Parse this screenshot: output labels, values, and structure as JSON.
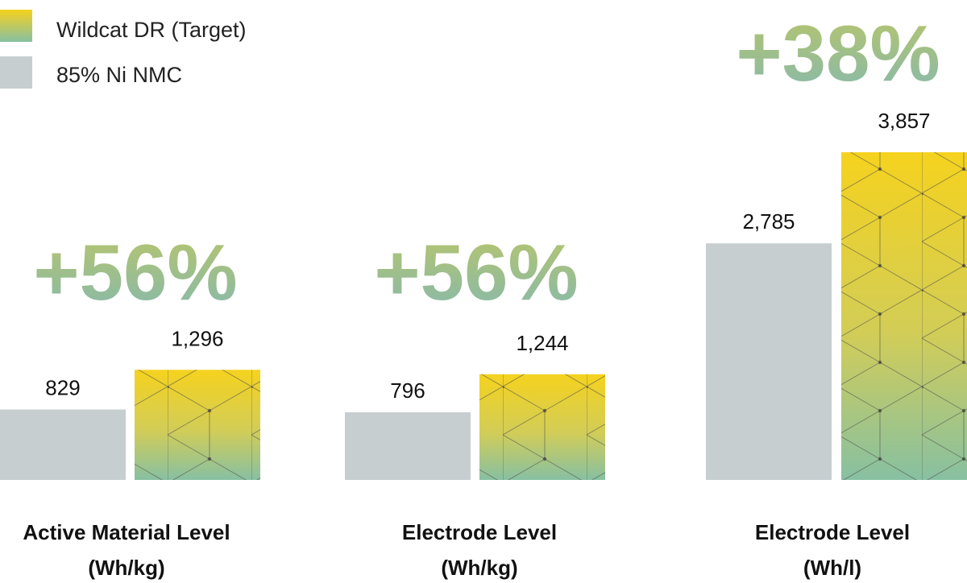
{
  "chart_data": {
    "type": "bar",
    "categories": [
      {
        "line1": "Active Material Level",
        "line2": "(Wh/kg)"
      },
      {
        "line1": "Electrode Level",
        "line2": "(Wh/kg)"
      },
      {
        "line1": "Electrode Level",
        "line2": "(Wh/l)"
      }
    ],
    "series": [
      {
        "name": "85% Ni NMC",
        "values": [
          829,
          796,
          2785
        ],
        "labels": [
          "829",
          "796",
          "2,785"
        ]
      },
      {
        "name": "Wildcat DR (Target)",
        "values": [
          1296,
          1244,
          3857
        ],
        "labels": [
          "1,296",
          "1,244",
          "3,857"
        ]
      }
    ],
    "improvements": [
      "+56%",
      "+56%",
      "+38%"
    ],
    "legend": [
      {
        "label": "Wildcat DR (Target)",
        "style": "gradient"
      },
      {
        "label": "85% Ni NMC",
        "style": "solid"
      }
    ],
    "legend_position": "top-left",
    "grid": false,
    "colors": {
      "baseline_bar": "#c6ced0",
      "gradient_top": "#f5d21e",
      "gradient_mid": "#d2cd57",
      "gradient_bottom": "#87c0a2",
      "pct_top": "#b7c56a",
      "pct_bottom": "#86b9ad",
      "text": "#111111"
    }
  }
}
